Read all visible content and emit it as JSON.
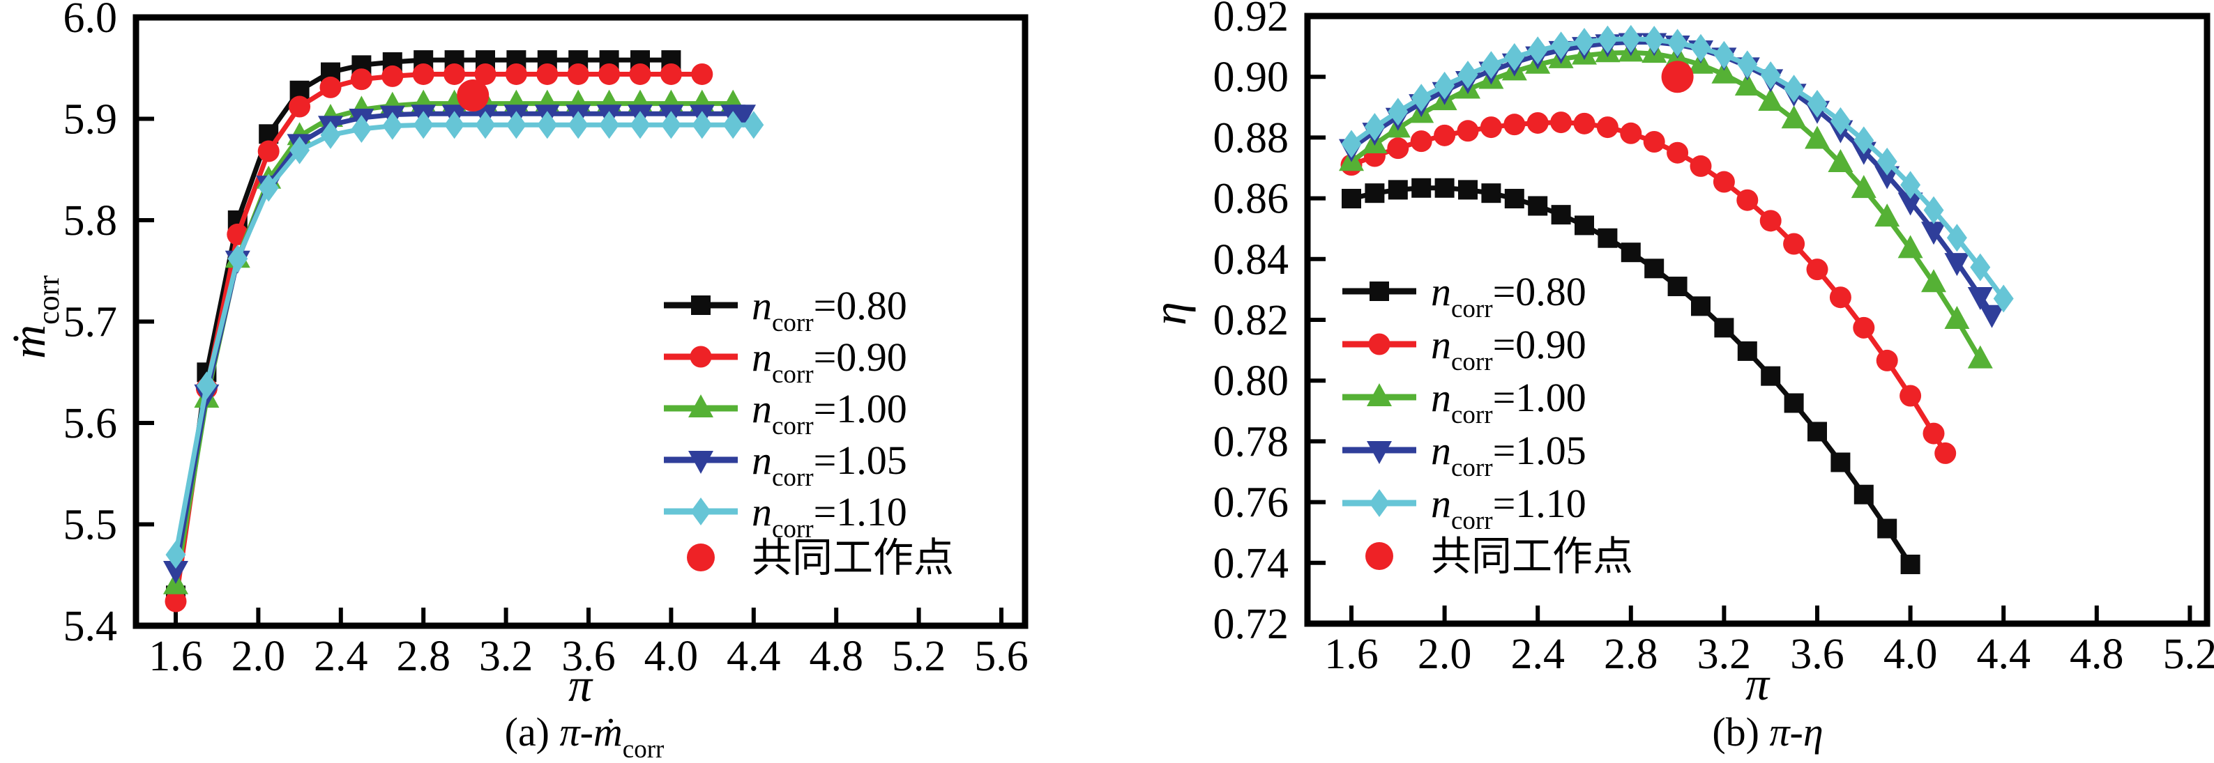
{
  "figure": {
    "background": "#ffffff",
    "axis_color": "#000000"
  },
  "chart_data": [
    {
      "id": "a",
      "type": "line",
      "title": "",
      "xlabel": "π",
      "ylabel_segments": [
        {
          "t": "ṁ",
          "i": 1
        },
        {
          "t": "corr",
          "sub": 1
        }
      ],
      "caption_segments": [
        {
          "t": "(a) "
        },
        {
          "t": "π",
          "i": 1
        },
        {
          "t": "-"
        },
        {
          "t": "ṁ",
          "i": 1
        },
        {
          "t": "corr",
          "sub": 1
        }
      ],
      "xlim": [
        1.41,
        5.72
      ],
      "ylim": [
        5.4,
        6.0
      ],
      "grid": false,
      "legend_position": "inside-right-lower",
      "xticks": [
        1.6,
        2.0,
        2.4,
        2.8,
        3.2,
        3.6,
        4.0,
        4.4,
        4.8,
        5.2,
        5.6
      ],
      "xtick_labels": [
        "1.6",
        "2.0",
        "2.4",
        "2.8",
        "3.2",
        "3.6",
        "4.0",
        "4.4",
        "4.8",
        "5.2",
        "5.6"
      ],
      "yticks": [
        5.4,
        5.5,
        5.6,
        5.7,
        5.8,
        5.9,
        6.0
      ],
      "ytick_labels": [
        "5.4",
        "5.5",
        "5.6",
        "5.7",
        "5.8",
        "5.9",
        "6.0"
      ],
      "series": [
        {
          "key": "ncorr-0.80",
          "label_segments": [
            {
              "t": "n",
              "i": 1
            },
            {
              "t": "corr",
              "sub": 1
            },
            {
              "t": "=0.80"
            }
          ],
          "color": "#0d0d0d",
          "marker": "square",
          "x": [
            1.6,
            1.75,
            1.9,
            2.05,
            2.2,
            2.35,
            2.5,
            2.65,
            2.8,
            2.95,
            3.1,
            3.25,
            3.4,
            3.55,
            3.7,
            3.85,
            4.0
          ],
          "y": [
            5.43,
            5.65,
            5.8,
            5.885,
            5.928,
            5.946,
            5.953,
            5.956,
            5.958,
            5.958,
            5.958,
            5.958,
            5.958,
            5.958,
            5.958,
            5.958,
            5.958
          ]
        },
        {
          "key": "ncorr-0.90",
          "label_segments": [
            {
              "t": "n",
              "i": 1
            },
            {
              "t": "corr",
              "sub": 1
            },
            {
              "t": "=0.90"
            }
          ],
          "color": "#ee2226",
          "marker": "circle",
          "x": [
            1.6,
            1.75,
            1.9,
            2.05,
            2.2,
            2.35,
            2.5,
            2.65,
            2.8,
            2.95,
            3.1,
            3.25,
            3.4,
            3.55,
            3.7,
            3.85,
            4.0,
            4.15
          ],
          "y": [
            5.424,
            5.634,
            5.786,
            5.868,
            5.912,
            5.931,
            5.939,
            5.942,
            5.944,
            5.944,
            5.944,
            5.944,
            5.944,
            5.944,
            5.944,
            5.944,
            5.944,
            5.944
          ]
        },
        {
          "key": "ncorr-1.00",
          "label_segments": [
            {
              "t": "n",
              "i": 1
            },
            {
              "t": "corr",
              "sub": 1
            },
            {
              "t": "=1.00"
            }
          ],
          "color": "#55b135",
          "marker": "triangle-up",
          "x": [
            1.6,
            1.75,
            1.9,
            2.05,
            2.2,
            2.35,
            2.5,
            2.65,
            2.8,
            2.95,
            3.1,
            3.25,
            3.4,
            3.55,
            3.7,
            3.85,
            4.0,
            4.15,
            4.3
          ],
          "y": [
            5.44,
            5.624,
            5.762,
            5.84,
            5.883,
            5.901,
            5.909,
            5.913,
            5.915,
            5.915,
            5.915,
            5.915,
            5.915,
            5.915,
            5.915,
            5.915,
            5.915,
            5.915,
            5.915
          ]
        },
        {
          "key": "ncorr-1.05",
          "label_segments": [
            {
              "t": "n",
              "i": 1
            },
            {
              "t": "corr",
              "sub": 1
            },
            {
              "t": "=1.05"
            }
          ],
          "color": "#2f3e9a",
          "marker": "triangle-down",
          "x": [
            1.6,
            1.75,
            1.9,
            2.05,
            2.2,
            2.35,
            2.5,
            2.65,
            2.8,
            2.95,
            3.1,
            3.25,
            3.4,
            3.55,
            3.7,
            3.85,
            4.0,
            4.15,
            4.3,
            4.35
          ],
          "y": [
            5.455,
            5.629,
            5.761,
            5.835,
            5.876,
            5.894,
            5.901,
            5.904,
            5.905,
            5.905,
            5.905,
            5.905,
            5.905,
            5.905,
            5.905,
            5.905,
            5.905,
            5.905,
            5.905,
            5.905
          ]
        },
        {
          "key": "ncorr-1.10",
          "label_segments": [
            {
              "t": "n",
              "i": 1
            },
            {
              "t": "corr",
              "sub": 1
            },
            {
              "t": "=1.10"
            }
          ],
          "color": "#66c5d6",
          "marker": "diamond",
          "x": [
            1.6,
            1.75,
            1.9,
            2.05,
            2.2,
            2.35,
            2.5,
            2.65,
            2.8,
            2.95,
            3.1,
            3.25,
            3.4,
            3.55,
            3.7,
            3.85,
            4.0,
            4.15,
            4.3,
            4.4
          ],
          "y": [
            5.47,
            5.637,
            5.762,
            5.832,
            5.869,
            5.884,
            5.89,
            5.893,
            5.894,
            5.894,
            5.894,
            5.894,
            5.894,
            5.894,
            5.894,
            5.894,
            5.894,
            5.894,
            5.894,
            5.894
          ]
        }
      ],
      "operating_point": {
        "label": "共同工作点",
        "x": 3.04,
        "y": 5.923,
        "color": "#ee2226"
      }
    },
    {
      "id": "b",
      "type": "line",
      "title": "",
      "xlabel": "π",
      "ylabel_segments": [
        {
          "t": "η",
          "i": 1
        }
      ],
      "caption_segments": [
        {
          "t": "(b) "
        },
        {
          "t": "π",
          "i": 1
        },
        {
          "t": "-"
        },
        {
          "t": "η",
          "i": 1
        }
      ],
      "xlim": [
        1.41,
        5.27
      ],
      "ylim": [
        0.72,
        0.92
      ],
      "grid": false,
      "legend_position": "inside-left-lower",
      "xticks": [
        1.6,
        2.0,
        2.4,
        2.8,
        3.2,
        3.6,
        4.0,
        4.4,
        4.8,
        5.2
      ],
      "xtick_labels": [
        "1.6",
        "2.0",
        "2.4",
        "2.8",
        "3.2",
        "3.6",
        "4.0",
        "4.4",
        "4.8",
        "5.2"
      ],
      "yticks": [
        0.72,
        0.74,
        0.76,
        0.78,
        0.8,
        0.82,
        0.84,
        0.86,
        0.88,
        0.9,
        0.92
      ],
      "ytick_labels": [
        "0.72",
        "0.74",
        "0.76",
        "0.78",
        "0.80",
        "0.82",
        "0.84",
        "0.86",
        "0.88",
        "0.90",
        "0.92"
      ],
      "series": [
        {
          "key": "ncorr-0.80",
          "label_segments": [
            {
              "t": "n",
              "i": 1
            },
            {
              "t": "corr",
              "sub": 1
            },
            {
              "t": "=0.80"
            }
          ],
          "color": "#0d0d0d",
          "marker": "square",
          "x": [
            1.6,
            1.7,
            1.8,
            1.9,
            2.0,
            2.1,
            2.2,
            2.3,
            2.4,
            2.5,
            2.6,
            2.7,
            2.8,
            2.9,
            3.0,
            3.1,
            3.2,
            3.3,
            3.4,
            3.5,
            3.6,
            3.7,
            3.8,
            3.9,
            4.0
          ],
          "y": [
            0.8599,
            0.8617,
            0.8628,
            0.8634,
            0.8634,
            0.8628,
            0.8617,
            0.8599,
            0.8575,
            0.8546,
            0.8511,
            0.8469,
            0.8422,
            0.8369,
            0.831,
            0.8245,
            0.8174,
            0.8097,
            0.8015,
            0.7926,
            0.7832,
            0.7731,
            0.7625,
            0.7513,
            0.7395
          ]
        },
        {
          "key": "ncorr-0.90",
          "label_segments": [
            {
              "t": "n",
              "i": 1
            },
            {
              "t": "corr",
              "sub": 1
            },
            {
              "t": "=0.90"
            }
          ],
          "color": "#ee2226",
          "marker": "circle",
          "x": [
            1.6,
            1.7,
            1.8,
            1.9,
            2.0,
            2.1,
            2.2,
            2.3,
            2.4,
            2.5,
            2.6,
            2.7,
            2.8,
            2.9,
            3.0,
            3.1,
            3.2,
            3.3,
            3.4,
            3.5,
            3.6,
            3.7,
            3.8,
            3.9,
            4.0,
            4.1,
            4.15
          ],
          "y": [
            0.871,
            0.8739,
            0.8765,
            0.8788,
            0.8807,
            0.8822,
            0.8834,
            0.8843,
            0.8848,
            0.885,
            0.8846,
            0.8834,
            0.8814,
            0.8786,
            0.875,
            0.8706,
            0.8654,
            0.8594,
            0.8526,
            0.845,
            0.8366,
            0.8274,
            0.8174,
            0.8066,
            0.795,
            0.7826,
            0.7761
          ]
        },
        {
          "key": "ncorr-1.00",
          "label_segments": [
            {
              "t": "n",
              "i": 1
            },
            {
              "t": "corr",
              "sub": 1
            },
            {
              "t": "=1.00"
            }
          ],
          "color": "#55b135",
          "marker": "triangle-up",
          "x": [
            1.6,
            1.7,
            1.8,
            1.9,
            2.0,
            2.1,
            2.2,
            2.3,
            2.4,
            2.5,
            2.6,
            2.7,
            2.8,
            2.9,
            3.0,
            3.1,
            3.2,
            3.3,
            3.4,
            3.5,
            3.6,
            3.7,
            3.8,
            3.9,
            4.0,
            4.1,
            4.2,
            4.3
          ],
          "y": [
            0.872,
            0.8778,
            0.883,
            0.8878,
            0.892,
            0.8958,
            0.899,
            0.9018,
            0.904,
            0.9058,
            0.907,
            0.9078,
            0.908,
            0.9076,
            0.9062,
            0.904,
            0.9008,
            0.8968,
            0.8918,
            0.886,
            0.8793,
            0.8716,
            0.8631,
            0.8537,
            0.8433,
            0.8321,
            0.82,
            0.807
          ]
        },
        {
          "key": "ncorr-1.05",
          "label_segments": [
            {
              "t": "n",
              "i": 1
            },
            {
              "t": "corr",
              "sub": 1
            },
            {
              "t": "=1.05"
            }
          ],
          "color": "#2f3e9a",
          "marker": "triangle-down",
          "x": [
            1.6,
            1.7,
            1.8,
            1.9,
            2.0,
            2.1,
            2.2,
            2.3,
            2.4,
            2.5,
            2.6,
            2.7,
            2.8,
            2.9,
            3.0,
            3.1,
            3.2,
            3.3,
            3.4,
            3.5,
            3.6,
            3.7,
            3.8,
            3.9,
            4.0,
            4.1,
            4.2,
            4.3,
            4.35
          ],
          "y": [
            0.8765,
            0.8819,
            0.8868,
            0.8913,
            0.8953,
            0.8989,
            0.902,
            0.9047,
            0.907,
            0.9088,
            0.9101,
            0.911,
            0.9114,
            0.9114,
            0.9106,
            0.909,
            0.9066,
            0.9034,
            0.8995,
            0.8947,
            0.8891,
            0.8827,
            0.8756,
            0.8676,
            0.8589,
            0.8493,
            0.839,
            0.8278,
            0.8219
          ]
        },
        {
          "key": "ncorr-1.10",
          "label_segments": [
            {
              "t": "n",
              "i": 1
            },
            {
              "t": "corr",
              "sub": 1
            },
            {
              "t": "=1.10"
            }
          ],
          "color": "#66c5d6",
          "marker": "diamond",
          "x": [
            1.6,
            1.7,
            1.8,
            1.9,
            2.0,
            2.1,
            2.2,
            2.3,
            2.4,
            2.5,
            2.6,
            2.7,
            2.8,
            2.9,
            3.0,
            3.1,
            3.2,
            3.3,
            3.4,
            3.5,
            3.6,
            3.7,
            3.8,
            3.9,
            4.0,
            4.1,
            4.2,
            4.3,
            4.4
          ],
          "y": [
            0.8779,
            0.8835,
            0.8885,
            0.8931,
            0.8971,
            0.9007,
            0.9039,
            0.9065,
            0.9087,
            0.9103,
            0.9115,
            0.9123,
            0.9125,
            0.9122,
            0.9112,
            0.9095,
            0.9072,
            0.9041,
            0.9005,
            0.8961,
            0.8911,
            0.8854,
            0.8791,
            0.8721,
            0.8644,
            0.8561,
            0.847,
            0.8373,
            0.827
          ]
        }
      ],
      "operating_point": {
        "label": "共同工作点",
        "x": 3.0,
        "y": 0.9,
        "color": "#ee2226"
      }
    }
  ]
}
